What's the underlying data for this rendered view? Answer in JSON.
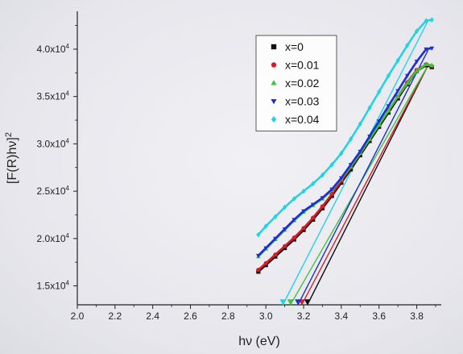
{
  "chart_data": {
    "type": "scatter",
    "title": "",
    "xlabel": "hν (eV)",
    "ylabel": "[F(R)hν]",
    "ylabel_sup": "2",
    "xlim": [
      2.0,
      3.93
    ],
    "ylim": [
      13000,
      44000
    ],
    "x_ticks": [
      2.0,
      2.2,
      2.4,
      2.6,
      2.8,
      3.0,
      3.2,
      3.4,
      3.6,
      3.8
    ],
    "x_tick_labels": [
      "2.0",
      "2.2",
      "2.4",
      "2.6",
      "2.8",
      "3.0",
      "3.2",
      "3.4",
      "3.6",
      "3.8"
    ],
    "y_ticks": [
      15000,
      20000,
      25000,
      30000,
      35000,
      40000
    ],
    "y_tick_mantissas": [
      "1.5x10",
      "2.0x10",
      "2.5x10",
      "3.0x10",
      "3.5x10",
      "4.0x10"
    ],
    "y_tick_exponent": "4",
    "legend_position": "top-right",
    "series": [
      {
        "name": "x=0",
        "color": "#111111",
        "marker": "square",
        "points": [
          [
            2.96,
            16500
          ],
          [
            3.0,
            17200
          ],
          [
            3.05,
            18100
          ],
          [
            3.1,
            19000
          ],
          [
            3.15,
            19900
          ],
          [
            3.2,
            20900
          ],
          [
            3.25,
            22000
          ],
          [
            3.3,
            23200
          ],
          [
            3.35,
            24500
          ],
          [
            3.4,
            25900
          ],
          [
            3.45,
            27300
          ],
          [
            3.5,
            28800
          ],
          [
            3.55,
            30300
          ],
          [
            3.6,
            31800
          ],
          [
            3.65,
            33300
          ],
          [
            3.7,
            34800
          ],
          [
            3.75,
            36300
          ],
          [
            3.8,
            37700
          ],
          [
            3.85,
            38300
          ],
          [
            3.88,
            38100
          ]
        ],
        "fit": [
          [
            3.22,
            13000
          ],
          [
            3.86,
            38300
          ]
        ],
        "intercept": 3.22
      },
      {
        "name": "x=0.01",
        "color": "#d81b2a",
        "marker": "circle",
        "points": [
          [
            2.96,
            16700
          ],
          [
            3.0,
            17400
          ],
          [
            3.05,
            18300
          ],
          [
            3.1,
            19200
          ],
          [
            3.15,
            20100
          ],
          [
            3.2,
            21100
          ],
          [
            3.25,
            22200
          ],
          [
            3.3,
            23400
          ],
          [
            3.35,
            24700
          ],
          [
            3.4,
            26100
          ],
          [
            3.45,
            27500
          ],
          [
            3.5,
            29000
          ],
          [
            3.55,
            30500
          ],
          [
            3.6,
            32000
          ],
          [
            3.65,
            33500
          ],
          [
            3.7,
            35000
          ],
          [
            3.75,
            36500
          ],
          [
            3.8,
            37800
          ],
          [
            3.85,
            38400
          ],
          [
            3.88,
            38200
          ]
        ],
        "fit": [
          [
            3.19,
            13000
          ],
          [
            3.86,
            38300
          ]
        ],
        "intercept": 3.19
      },
      {
        "name": "x=0.02",
        "color": "#3cc43c",
        "marker": "triangle-up",
        "points": [
          [
            2.96,
            18100
          ],
          [
            3.0,
            18900
          ],
          [
            3.05,
            19900
          ],
          [
            3.1,
            20900
          ],
          [
            3.15,
            21900
          ],
          [
            3.2,
            22800
          ],
          [
            3.25,
            23500
          ],
          [
            3.3,
            24200
          ],
          [
            3.35,
            25100
          ],
          [
            3.4,
            26300
          ],
          [
            3.45,
            27600
          ],
          [
            3.5,
            29000
          ],
          [
            3.55,
            30500
          ],
          [
            3.6,
            32000
          ],
          [
            3.65,
            33500
          ],
          [
            3.7,
            35000
          ],
          [
            3.75,
            36400
          ],
          [
            3.8,
            37700
          ],
          [
            3.85,
            38400
          ],
          [
            3.88,
            38300
          ]
        ],
        "fit": [
          [
            3.13,
            13000
          ],
          [
            3.86,
            38300
          ]
        ],
        "intercept": 3.13
      },
      {
        "name": "x=0.03",
        "color": "#1a2fd6",
        "marker": "triangle-down",
        "points": [
          [
            2.96,
            18200
          ],
          [
            3.0,
            19000
          ],
          [
            3.05,
            20000
          ],
          [
            3.1,
            21000
          ],
          [
            3.15,
            22000
          ],
          [
            3.2,
            22900
          ],
          [
            3.25,
            23600
          ],
          [
            3.3,
            24300
          ],
          [
            3.35,
            25200
          ],
          [
            3.4,
            26400
          ],
          [
            3.45,
            27800
          ],
          [
            3.5,
            29200
          ],
          [
            3.55,
            30800
          ],
          [
            3.6,
            32400
          ],
          [
            3.65,
            34000
          ],
          [
            3.7,
            35600
          ],
          [
            3.75,
            37200
          ],
          [
            3.8,
            38700
          ],
          [
            3.85,
            40000
          ],
          [
            3.88,
            40100
          ]
        ],
        "fit": [
          [
            3.17,
            13000
          ],
          [
            3.86,
            39900
          ]
        ],
        "intercept": 3.17
      },
      {
        "name": "x=0.04",
        "color": "#23d3e3",
        "marker": "diamond",
        "points": [
          [
            2.96,
            20400
          ],
          [
            3.0,
            21300
          ],
          [
            3.05,
            22300
          ],
          [
            3.1,
            23300
          ],
          [
            3.15,
            24200
          ],
          [
            3.2,
            25000
          ],
          [
            3.25,
            25800
          ],
          [
            3.3,
            26700
          ],
          [
            3.35,
            27800
          ],
          [
            3.4,
            29000
          ],
          [
            3.45,
            30500
          ],
          [
            3.5,
            32100
          ],
          [
            3.55,
            33800
          ],
          [
            3.6,
            35500
          ],
          [
            3.65,
            37200
          ],
          [
            3.7,
            38800
          ],
          [
            3.75,
            40400
          ],
          [
            3.8,
            41900
          ],
          [
            3.85,
            43000
          ],
          [
            3.88,
            43100
          ]
        ],
        "fit": [
          [
            3.09,
            13000
          ],
          [
            3.86,
            43000
          ]
        ],
        "intercept": 3.09
      }
    ]
  }
}
